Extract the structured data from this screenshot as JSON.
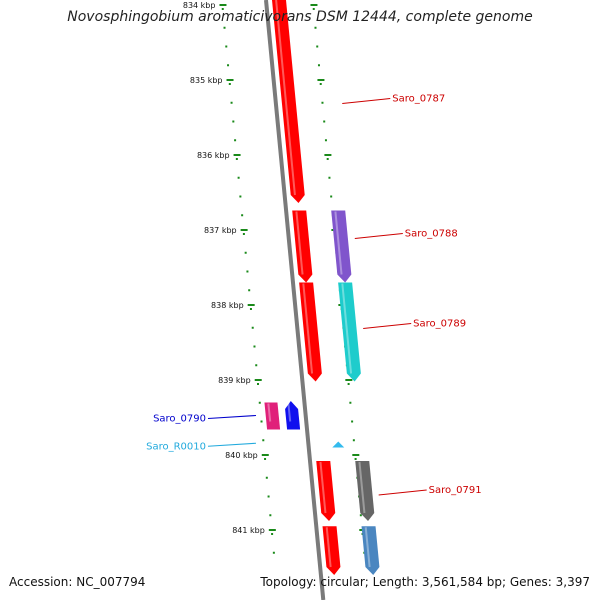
{
  "title": "Novosphingobium aromaticivorans DSM 12444, complete genome",
  "accession_text": "Accession: NC_007794",
  "topology_text": "Topology: circular; Length: 3,561,584 bp; Genes: 3,397",
  "colors": {
    "tick": "#1a8a1a",
    "backbone": "#7a7a7a",
    "cds": "#ff0000",
    "label_red": "#cc0000",
    "label_blue": "#0000cc",
    "label_cyan": "#22aadd"
  },
  "axis": {
    "unit": "kbp",
    "ticks": [
      {
        "kb": 834,
        "label": "834 kbp"
      },
      {
        "kb": 835,
        "label": "835 kbp"
      },
      {
        "kb": 836,
        "label": "836 kbp"
      },
      {
        "kb": 837,
        "label": "837 kbp"
      },
      {
        "kb": 838,
        "label": "838 kbp"
      },
      {
        "kb": 839,
        "label": "839 kbp"
      },
      {
        "kb": 840,
        "label": "840 kbp"
      },
      {
        "kb": 841,
        "label": "841 kbp"
      }
    ]
  },
  "features": [
    {
      "kb_start": 833.92,
      "kb_end": 836.64,
      "track": "cds",
      "color": "#ff0000"
    },
    {
      "kb_start": 836.74,
      "kb_end": 837.7,
      "track": "cds",
      "color": "#ff0000"
    },
    {
      "kb_start": 837.7,
      "kb_end": 839.02,
      "track": "cds",
      "color": "#ff0000"
    },
    {
      "kb_start": 840.08,
      "kb_end": 840.88,
      "track": "cds",
      "color": "#ff0000"
    },
    {
      "kb_start": 840.95,
      "kb_end": 841.6,
      "track": "cds",
      "color": "#ff0000"
    },
    {
      "kb_start": 836.74,
      "kb_end": 837.7,
      "track": "gene",
      "color": "#8055cc",
      "name": "Saro_0788"
    },
    {
      "kb_start": 837.7,
      "kb_end": 839.02,
      "track": "gene",
      "color": "#1ecccc",
      "name": "Saro_0789"
    },
    {
      "kb_start": 840.08,
      "kb_end": 840.88,
      "track": "gene",
      "color": "#666666",
      "name": "Saro_0791"
    },
    {
      "kb_start": 840.95,
      "kb_end": 841.6,
      "track": "gene",
      "color": "#4a86c0"
    },
    {
      "kb_start": 839.3,
      "kb_end": 839.66,
      "track": "left2",
      "color": "#e0207a"
    },
    {
      "kb_start": 839.28,
      "kb_end": 839.66,
      "track": "left1",
      "color": "#1010ee",
      "name": "Saro_0790"
    },
    {
      "kb_start": 839.82,
      "kb_end": 839.89,
      "track": "left1",
      "color": "#33bbee",
      "name": "Saro_R0010"
    }
  ],
  "labels": [
    {
      "text": "Saro_0787",
      "kb": 835.26,
      "color": "#cc0000",
      "side": "right"
    },
    {
      "text": "Saro_0788",
      "kb": 837.06,
      "color": "#cc0000",
      "side": "right"
    },
    {
      "text": "Saro_0789",
      "kb": 838.26,
      "color": "#cc0000",
      "side": "right"
    },
    {
      "text": "Saro_0790",
      "kb": 839.5,
      "color": "#0000cc",
      "side": "left"
    },
    {
      "text": "Saro_R0010",
      "kb": 839.87,
      "color": "#22aadd",
      "side": "left"
    },
    {
      "text": "Saro_0791",
      "kb": 840.48,
      "color": "#cc0000",
      "side": "right"
    }
  ]
}
